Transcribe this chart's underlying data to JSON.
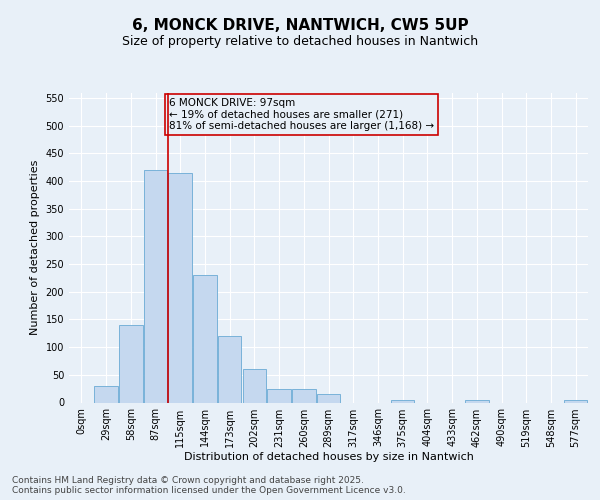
{
  "title": "6, MONCK DRIVE, NANTWICH, CW5 5UP",
  "subtitle": "Size of property relative to detached houses in Nantwich",
  "xlabel": "Distribution of detached houses by size in Nantwich",
  "ylabel": "Number of detached properties",
  "bar_labels": [
    "0sqm",
    "29sqm",
    "58sqm",
    "87sqm",
    "115sqm",
    "144sqm",
    "173sqm",
    "202sqm",
    "231sqm",
    "260sqm",
    "289sqm",
    "317sqm",
    "346sqm",
    "375sqm",
    "404sqm",
    "433sqm",
    "462sqm",
    "490sqm",
    "519sqm",
    "548sqm",
    "577sqm"
  ],
  "bar_values": [
    0,
    30,
    140,
    420,
    415,
    230,
    120,
    60,
    25,
    25,
    15,
    0,
    0,
    5,
    0,
    0,
    5,
    0,
    0,
    0,
    5
  ],
  "bar_color": "#c5d8ef",
  "bar_edge_color": "#6aaad4",
  "background_color": "#e8f0f8",
  "plot_bg_color": "#e8f0f8",
  "grid_color": "#ffffff",
  "ylim": [
    0,
    560
  ],
  "yticks": [
    0,
    50,
    100,
    150,
    200,
    250,
    300,
    350,
    400,
    450,
    500,
    550
  ],
  "vline_x_index": 3,
  "vline_color": "#cc0000",
  "annotation_text": "6 MONCK DRIVE: 97sqm\n← 19% of detached houses are smaller (271)\n81% of semi-detached houses are larger (1,168) →",
  "annotation_box_color": "#cc0000",
  "footer_text": "Contains HM Land Registry data © Crown copyright and database right 2025.\nContains public sector information licensed under the Open Government Licence v3.0.",
  "title_fontsize": 11,
  "subtitle_fontsize": 9,
  "axis_label_fontsize": 8,
  "tick_fontsize": 7,
  "annotation_fontsize": 7.5,
  "footer_fontsize": 6.5
}
